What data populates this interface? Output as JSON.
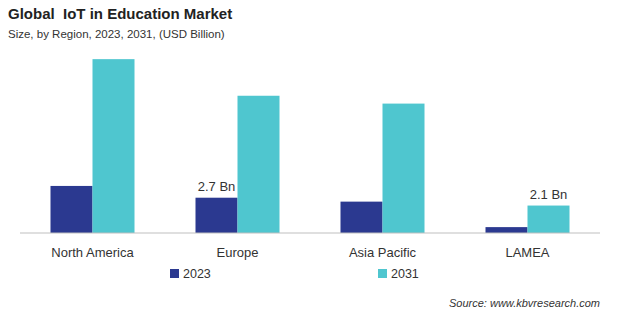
{
  "chart_data": {
    "type": "bar",
    "title": "Global  IoT in Education Market",
    "subtitle": "Size, by Region, 2023, 2031, (USD Billion)",
    "source": "Source: www.kbvresearch.com",
    "categories": [
      "North America",
      "Europe",
      "Asia Pacific",
      "LAMEA"
    ],
    "series": [
      {
        "name": "2023",
        "color": "#2b3990",
        "values": [
          3.6,
          2.7,
          2.4,
          0.45
        ],
        "value_labels": [
          null,
          "2.7 Bn",
          null,
          null
        ]
      },
      {
        "name": "2031",
        "color": "#4fc6cf",
        "values": [
          13.3,
          10.5,
          9.9,
          2.1
        ],
        "value_labels": [
          null,
          null,
          null,
          "2.1 Bn"
        ]
      }
    ],
    "ylim": [
      0,
      14
    ],
    "grid": false,
    "legend": "bottom",
    "data_labels": true,
    "tick_labels": "x"
  }
}
